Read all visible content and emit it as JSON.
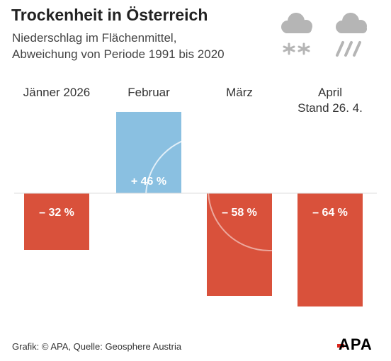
{
  "header": {
    "title": "Trockenheit in Österreich",
    "subtitle_line1": "Niederschlag im Flächenmittel,",
    "subtitle_line2": "Abweichung von Periode 1991 bis 2020"
  },
  "icons": [
    "snow-cloud-icon",
    "rain-cloud-icon"
  ],
  "colors": {
    "positive": "#8ac0e1",
    "negative": "#d9513b",
    "icon_gray": "#b5b5b5",
    "baseline": "#dddddd",
    "logo_accent": "#d9251c"
  },
  "chart_data": {
    "type": "bar",
    "title": "Trockenheit in Österreich",
    "categories": [
      [
        "Jänner 2026"
      ],
      [
        "Februar"
      ],
      [
        "März"
      ],
      [
        "April",
        "Stand 26. 4."
      ]
    ],
    "values": [
      -32,
      46,
      -58,
      -64
    ],
    "value_labels": [
      "– 32 %",
      "+ 46 %",
      "– 58 %",
      "– 64 %"
    ],
    "unit": "%",
    "ylim": [
      -65,
      46
    ],
    "grid": false,
    "legend": "none"
  },
  "footer": {
    "credit": "Grafik: © APA, Quelle: Geosphere Austria",
    "logo": "APA"
  }
}
